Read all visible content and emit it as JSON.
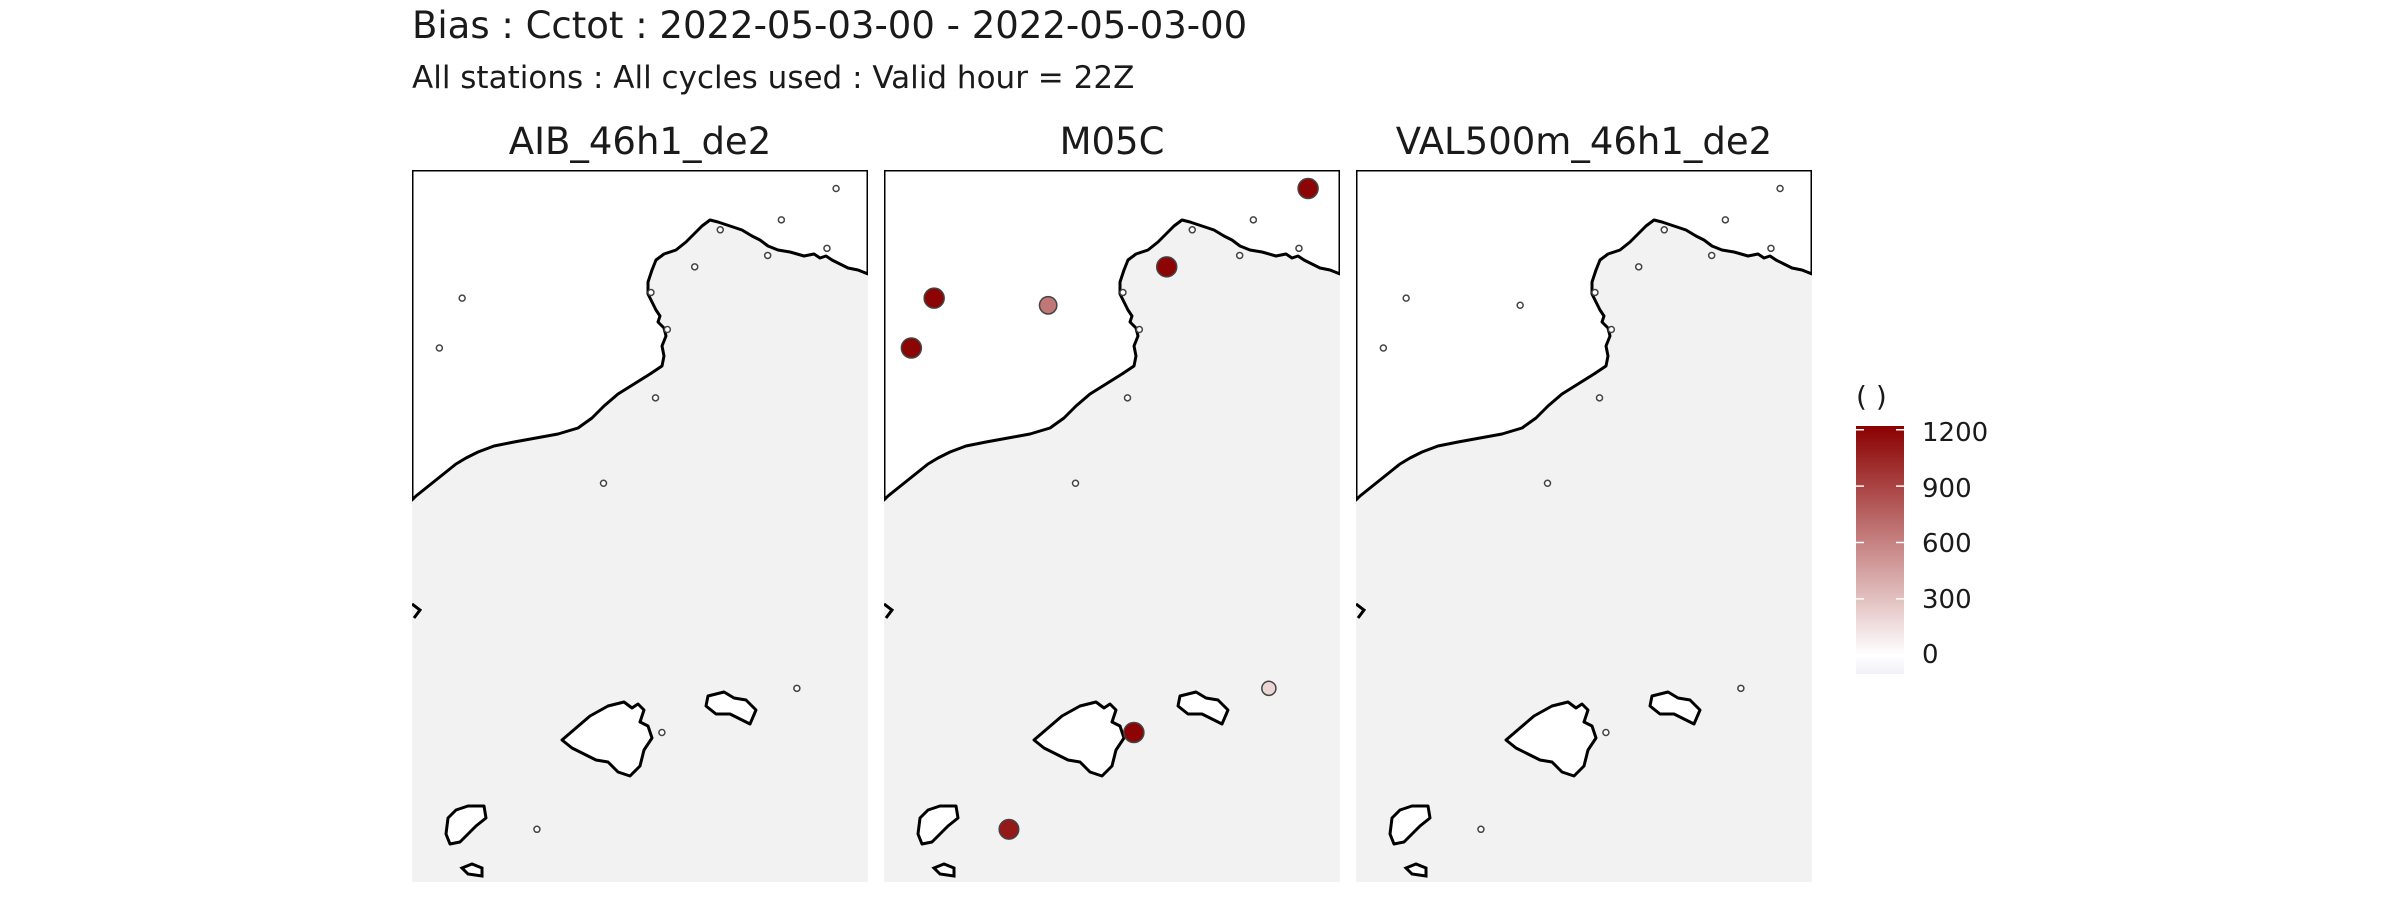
{
  "header": {
    "title": "Bias : Cctot : 2022-05-03-00 - 2022-05-03-00",
    "subtitle": "All stations : All cycles used : Valid hour = 22Z"
  },
  "panels": [
    {
      "name": "AIB_46h1_de2",
      "stations": [
        {
          "lon": 4.55,
          "lat": 42.95,
          "bias": 0
        },
        {
          "lon": 3.1,
          "lat": 42.82,
          "bias": 0
        },
        {
          "lon": 3.9,
          "lat": 42.9,
          "bias": 0
        },
        {
          "lon": 4.05,
          "lat": 43.15,
          "bias": 0
        },
        {
          "lon": 4.65,
          "lat": 43.37,
          "bias": 0
        },
        {
          "lon": 3.38,
          "lat": 43.08,
          "bias": 0
        },
        {
          "lon": 2.62,
          "lat": 42.64,
          "bias": 0
        },
        {
          "lon": 2.8,
          "lat": 42.38,
          "bias": 0
        },
        {
          "lon": 2.67,
          "lat": 41.9,
          "bias": 0
        },
        {
          "lon": 2.1,
          "lat": 41.3,
          "bias": 0
        },
        {
          "lon": 0.55,
          "lat": 42.6,
          "bias": 0
        },
        {
          "lon": 0.3,
          "lat": 42.25,
          "bias": 0
        },
        {
          "lon": 4.22,
          "lat": 39.86,
          "bias": 0
        },
        {
          "lon": 2.74,
          "lat": 39.55,
          "bias": 0
        },
        {
          "lon": 1.37,
          "lat": 38.87,
          "bias": 0
        }
      ]
    },
    {
      "name": "M05C",
      "stations": [
        {
          "lon": 4.55,
          "lat": 42.95,
          "bias": 0
        },
        {
          "lon": 3.1,
          "lat": 42.82,
          "bias": 1200
        },
        {
          "lon": 3.9,
          "lat": 42.9,
          "bias": 0
        },
        {
          "lon": 4.05,
          "lat": 43.15,
          "bias": 0
        },
        {
          "lon": 4.65,
          "lat": 43.37,
          "bias": 1200
        },
        {
          "lon": 3.38,
          "lat": 43.08,
          "bias": 0
        },
        {
          "lon": 2.62,
          "lat": 42.64,
          "bias": 0
        },
        {
          "lon": 2.8,
          "lat": 42.38,
          "bias": 0
        },
        {
          "lon": 2.67,
          "lat": 41.9,
          "bias": 0
        },
        {
          "lon": 2.1,
          "lat": 41.3,
          "bias": 0
        },
        {
          "lon": 0.55,
          "lat": 42.6,
          "bias": 1200
        },
        {
          "lon": 0.3,
          "lat": 42.25,
          "bias": 1200
        },
        {
          "lon": 1.8,
          "lat": 42.55,
          "bias": 650
        },
        {
          "lon": 4.22,
          "lat": 39.86,
          "bias": 200
        },
        {
          "lon": 2.74,
          "lat": 39.55,
          "bias": 1200
        },
        {
          "lon": 1.37,
          "lat": 38.87,
          "bias": 1100
        }
      ]
    },
    {
      "name": "VAL500m_46h1_de2",
      "stations": [
        {
          "lon": 4.55,
          "lat": 42.95,
          "bias": 0
        },
        {
          "lon": 3.1,
          "lat": 42.82,
          "bias": 0
        },
        {
          "lon": 3.9,
          "lat": 42.9,
          "bias": 0
        },
        {
          "lon": 4.05,
          "lat": 43.15,
          "bias": 0
        },
        {
          "lon": 4.65,
          "lat": 43.37,
          "bias": 0
        },
        {
          "lon": 3.38,
          "lat": 43.08,
          "bias": 0
        },
        {
          "lon": 2.62,
          "lat": 42.64,
          "bias": 0
        },
        {
          "lon": 2.8,
          "lat": 42.38,
          "bias": 0
        },
        {
          "lon": 2.67,
          "lat": 41.9,
          "bias": 0
        },
        {
          "lon": 2.1,
          "lat": 41.3,
          "bias": 0
        },
        {
          "lon": 0.55,
          "lat": 42.6,
          "bias": 0
        },
        {
          "lon": 1.8,
          "lat": 42.55,
          "bias": 0
        },
        {
          "lon": 0.3,
          "lat": 42.25,
          "bias": 0
        },
        {
          "lon": 4.22,
          "lat": 39.86,
          "bias": 0
        },
        {
          "lon": 2.74,
          "lat": 39.55,
          "bias": 0
        },
        {
          "lon": 1.37,
          "lat": 38.87,
          "bias": 0
        }
      ]
    }
  ],
  "map_extent": {
    "lon": [
      0.0,
      5.0
    ],
    "lat": [
      38.5,
      43.5
    ]
  },
  "legend": {
    "title": "( )",
    "ticks": [
      1200,
      900,
      600,
      300,
      0
    ],
    "range": [
      -100,
      1220
    ],
    "colors": {
      "low": "#f0f0f8",
      "mid": "#ffffff",
      "high": "#8b0000"
    }
  },
  "colors": {
    "sea": "#f2f2f2",
    "land": "#ffffff",
    "coast": "#000000"
  }
}
